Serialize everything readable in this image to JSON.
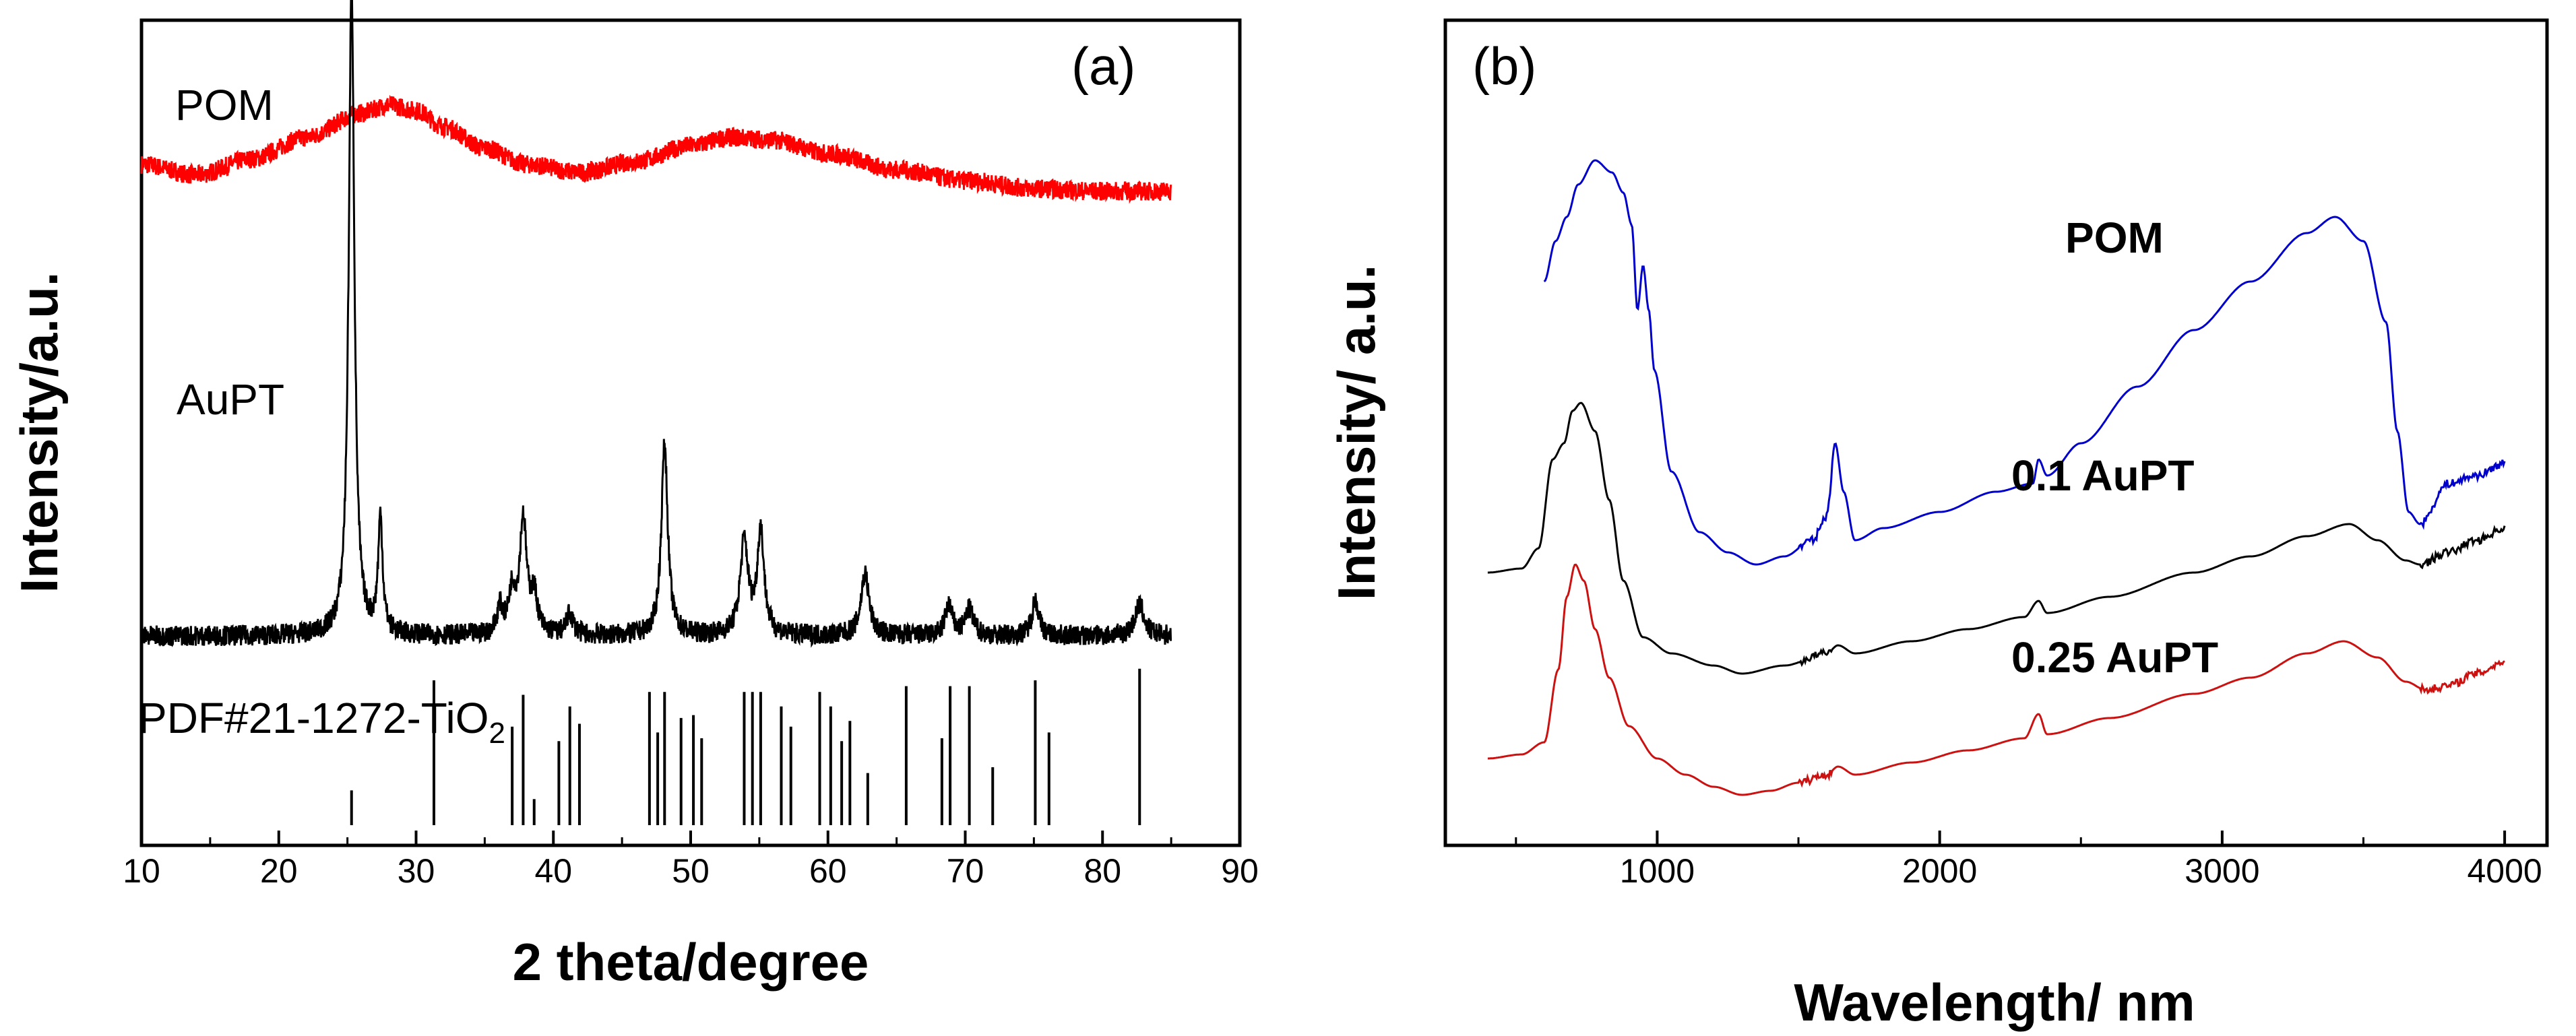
{
  "chart_data": [
    {
      "panel": "(a)",
      "type": "line",
      "xlabel": "2 theta/degree",
      "ylabel": "Intensity/a.u.",
      "xlim": [
        10,
        90
      ],
      "x_ticks": [
        10,
        20,
        30,
        40,
        50,
        60,
        70,
        80,
        90
      ],
      "yticks_shown": false,
      "series": [
        {
          "name": "POM",
          "color": "#ff0000",
          "noise": 0.035,
          "points": [
            [
              10,
              0.24
            ],
            [
              14,
              0.2
            ],
            [
              18,
              0.26
            ],
            [
              22,
              0.34
            ],
            [
              26,
              0.43
            ],
            [
              28,
              0.46
            ],
            [
              30,
              0.44
            ],
            [
              32,
              0.38
            ],
            [
              35,
              0.3
            ],
            [
              38,
              0.24
            ],
            [
              42,
              0.21
            ],
            [
              46,
              0.25
            ],
            [
              50,
              0.31
            ],
            [
              53,
              0.34
            ],
            [
              56,
              0.33
            ],
            [
              60,
              0.28
            ],
            [
              65,
              0.22
            ],
            [
              70,
              0.18
            ],
            [
              75,
              0.15
            ],
            [
              80,
              0.14
            ],
            [
              85,
              0.14
            ]
          ]
        },
        {
          "name": "AuPT",
          "color": "#000000",
          "noise": 0.02,
          "baseline": 0.04,
          "peaks": [
            [
              25.3,
              1.25,
              0.25
            ],
            [
              27.4,
              0.22,
              0.2
            ],
            [
              36.1,
              0.05,
              0.25
            ],
            [
              37.0,
              0.08,
              0.3
            ],
            [
              37.8,
              0.22,
              0.3
            ],
            [
              38.6,
              0.07,
              0.3
            ],
            [
              41.2,
              0.04,
              0.3
            ],
            [
              48.1,
              0.37,
              0.28
            ],
            [
              53.9,
              0.18,
              0.35
            ],
            [
              55.1,
              0.2,
              0.3
            ],
            [
              62.7,
              0.12,
              0.35
            ],
            [
              68.8,
              0.06,
              0.3
            ],
            [
              70.3,
              0.05,
              0.35
            ],
            [
              75.1,
              0.07,
              0.3
            ],
            [
              82.7,
              0.06,
              0.4
            ]
          ]
        },
        {
          "name": "PDF#21-1272-TiO",
          "subscript": "2",
          "type": "stick",
          "color": "#000000",
          "sticks": [
            [
              25.3,
              0.12
            ],
            [
              31.3,
              0.5
            ],
            [
              37.0,
              0.34
            ],
            [
              37.8,
              0.45
            ],
            [
              38.6,
              0.09
            ],
            [
              40.4,
              0.29
            ],
            [
              41.2,
              0.41
            ],
            [
              41.9,
              0.35
            ],
            [
              47.0,
              0.46
            ],
            [
              47.6,
              0.32
            ],
            [
              48.1,
              0.46
            ],
            [
              49.3,
              0.37
            ],
            [
              50.2,
              0.38
            ],
            [
              50.8,
              0.3
            ],
            [
              53.9,
              0.46
            ],
            [
              54.5,
              0.46
            ],
            [
              55.1,
              0.46
            ],
            [
              56.6,
              0.41
            ],
            [
              57.3,
              0.34
            ],
            [
              59.4,
              0.46
            ],
            [
              60.2,
              0.41
            ],
            [
              61.0,
              0.29
            ],
            [
              61.6,
              0.36
            ],
            [
              62.9,
              0.18
            ],
            [
              65.7,
              0.48
            ],
            [
              68.3,
              0.3
            ],
            [
              68.9,
              0.48
            ],
            [
              70.3,
              0.48
            ],
            [
              72.0,
              0.2
            ],
            [
              75.1,
              0.5
            ],
            [
              76.1,
              0.32
            ],
            [
              82.7,
              0.54
            ]
          ]
        }
      ]
    },
    {
      "panel": "(b)",
      "type": "line",
      "xlabel": "Wavelength/ nm",
      "ylabel": "Intensity/ a.u.",
      "xlim": [
        250,
        4150
      ],
      "x_ticks": [
        1000,
        2000,
        3000,
        4000
      ],
      "x_minor_ticks": [
        500,
        1500,
        2500,
        3500
      ],
      "yticks_shown": false,
      "series": [
        {
          "name": "POM",
          "color": "#0000cc",
          "points": [
            [
              600,
              1.22
            ],
            [
              640,
              1.32
            ],
            [
              680,
              1.38
            ],
            [
              720,
              1.46
            ],
            [
              780,
              1.52
            ],
            [
              840,
              1.49
            ],
            [
              880,
              1.44
            ],
            [
              910,
              1.36
            ],
            [
              930,
              1.15
            ],
            [
              950,
              1.26
            ],
            [
              970,
              1.15
            ],
            [
              990,
              1.0
            ],
            [
              1050,
              0.75
            ],
            [
              1150,
              0.6
            ],
            [
              1250,
              0.55
            ],
            [
              1350,
              0.52
            ],
            [
              1450,
              0.54
            ],
            [
              1550,
              0.58
            ],
            [
              1600,
              0.64
            ],
            [
              1630,
              0.82
            ],
            [
              1660,
              0.7
            ],
            [
              1700,
              0.58
            ],
            [
              1800,
              0.61
            ],
            [
              2000,
              0.65
            ],
            [
              2200,
              0.7
            ],
            [
              2330,
              0.72
            ],
            [
              2350,
              0.78
            ],
            [
              2380,
              0.74
            ],
            [
              2500,
              0.82
            ],
            [
              2700,
              0.96
            ],
            [
              2900,
              1.1
            ],
            [
              3100,
              1.22
            ],
            [
              3300,
              1.34
            ],
            [
              3400,
              1.38
            ],
            [
              3500,
              1.32
            ],
            [
              3580,
              1.12
            ],
            [
              3620,
              0.85
            ],
            [
              3660,
              0.65
            ],
            [
              3700,
              0.62
            ],
            [
              3800,
              0.72
            ],
            [
              3900,
              0.74
            ],
            [
              4000,
              0.77
            ]
          ]
        },
        {
          "name": "0.1 AuPT",
          "color": "#000000",
          "points": [
            [
              400,
              0.5
            ],
            [
              520,
              0.51
            ],
            [
              580,
              0.56
            ],
            [
              630,
              0.78
            ],
            [
              670,
              0.82
            ],
            [
              700,
              0.9
            ],
            [
              730,
              0.92
            ],
            [
              780,
              0.85
            ],
            [
              830,
              0.68
            ],
            [
              880,
              0.48
            ],
            [
              950,
              0.34
            ],
            [
              1050,
              0.3
            ],
            [
              1200,
              0.27
            ],
            [
              1300,
              0.25
            ],
            [
              1450,
              0.27
            ],
            [
              1600,
              0.3
            ],
            [
              1640,
              0.32
            ],
            [
              1700,
              0.3
            ],
            [
              1900,
              0.33
            ],
            [
              2100,
              0.36
            ],
            [
              2300,
              0.39
            ],
            [
              2350,
              0.43
            ],
            [
              2380,
              0.4
            ],
            [
              2600,
              0.44
            ],
            [
              2900,
              0.5
            ],
            [
              3100,
              0.54
            ],
            [
              3300,
              0.59
            ],
            [
              3450,
              0.62
            ],
            [
              3550,
              0.58
            ],
            [
              3650,
              0.53
            ],
            [
              3700,
              0.52
            ],
            [
              3800,
              0.55
            ],
            [
              3900,
              0.58
            ],
            [
              4000,
              0.61
            ]
          ]
        },
        {
          "name": "0.25 AuPT",
          "color": "#cc1111",
          "points": [
            [
              400,
              0.04
            ],
            [
              520,
              0.05
            ],
            [
              600,
              0.08
            ],
            [
              650,
              0.26
            ],
            [
              680,
              0.44
            ],
            [
              710,
              0.52
            ],
            [
              740,
              0.48
            ],
            [
              780,
              0.36
            ],
            [
              830,
              0.24
            ],
            [
              900,
              0.12
            ],
            [
              1000,
              0.04
            ],
            [
              1100,
              0.0
            ],
            [
              1200,
              -0.03
            ],
            [
              1300,
              -0.05
            ],
            [
              1400,
              -0.04
            ],
            [
              1500,
              -0.02
            ],
            [
              1600,
              0.0
            ],
            [
              1640,
              0.02
            ],
            [
              1700,
              0.0
            ],
            [
              1900,
              0.03
            ],
            [
              2100,
              0.06
            ],
            [
              2300,
              0.09
            ],
            [
              2350,
              0.15
            ],
            [
              2380,
              0.1
            ],
            [
              2600,
              0.14
            ],
            [
              2900,
              0.2
            ],
            [
              3100,
              0.24
            ],
            [
              3300,
              0.3
            ],
            [
              3430,
              0.33
            ],
            [
              3550,
              0.29
            ],
            [
              3650,
              0.23
            ],
            [
              3720,
              0.21
            ],
            [
              3800,
              0.22
            ],
            [
              3900,
              0.25
            ],
            [
              4000,
              0.28
            ]
          ]
        }
      ]
    }
  ]
}
